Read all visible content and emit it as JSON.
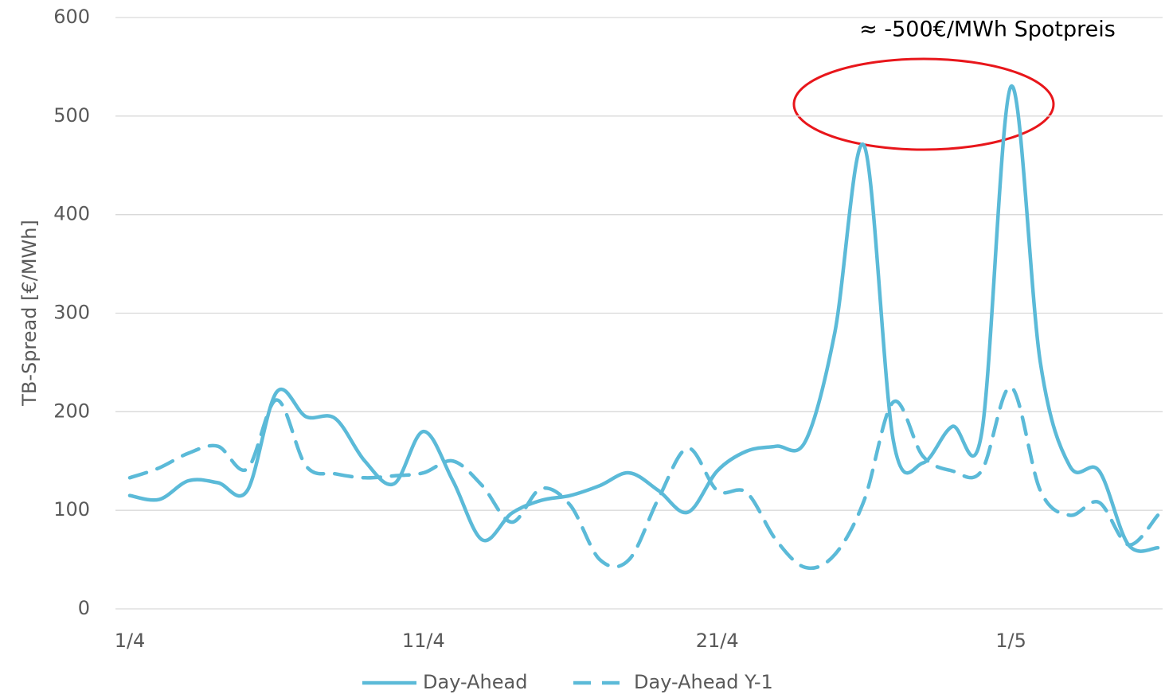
{
  "chart_data": {
    "type": "line",
    "y_label": "TB-Spread [€/MWh]",
    "annotation": "≈ -500€/MWh Spotpreis",
    "categories": [
      "1/4",
      null,
      null,
      null,
      null,
      null,
      null,
      null,
      null,
      null,
      "11/4",
      null,
      null,
      null,
      null,
      null,
      null,
      null,
      null,
      null,
      "21/4",
      null,
      null,
      null,
      null,
      null,
      null,
      null,
      null,
      null,
      "1/5",
      null,
      null,
      null,
      null,
      null
    ],
    "series": [
      {
        "name": "Day-Ahead",
        "color": "#5bbad8",
        "dash": false,
        "values": [
          115,
          111,
          130,
          128,
          120,
          220,
          195,
          193,
          150,
          127,
          180,
          130,
          70,
          97,
          110,
          115,
          125,
          138,
          120,
          98,
          140,
          160,
          165,
          170,
          280,
          470,
          170,
          148,
          185,
          178,
          530,
          250,
          145,
          140,
          65,
          62
        ]
      },
      {
        "name": "Day-Ahead Y-1",
        "color": "#5bbad8",
        "dash": true,
        "values": [
          133,
          143,
          158,
          165,
          142,
          212,
          145,
          137,
          133,
          135,
          138,
          150,
          125,
          88,
          122,
          105,
          50,
          50,
          112,
          163,
          120,
          118,
          70,
          42,
          55,
          110,
          210,
          155,
          140,
          140,
          225,
          120,
          95,
          108,
          65,
          95
        ]
      }
    ],
    "ylim": [
      0,
      600
    ],
    "yticks": [
      0,
      100,
      200,
      300,
      400,
      500,
      600
    ],
    "grid": true
  }
}
